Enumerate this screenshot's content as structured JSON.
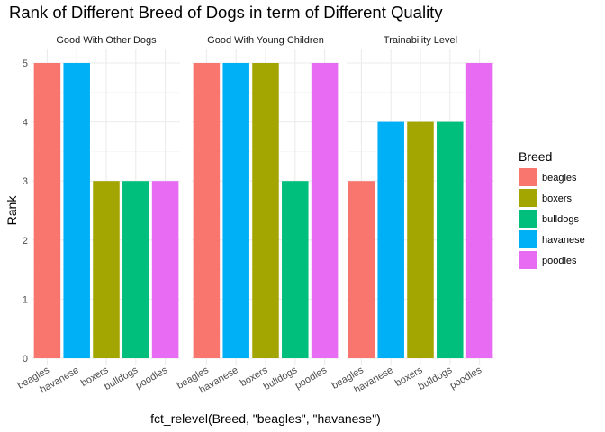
{
  "chart_data": {
    "type": "bar",
    "title": "Rank of Different Breed of Dogs in term of Different Quality",
    "xlabel": "fct_relevel(Breed, \"beagles\", \"havanese\")",
    "ylabel": "Rank",
    "ylim": [
      0,
      5
    ],
    "yticks": [
      "0",
      "1",
      "2",
      "3",
      "4",
      "5"
    ],
    "grid": true,
    "legend_position": "right",
    "categories": [
      "beagles",
      "havanese",
      "boxers",
      "bulldogs",
      "poodles"
    ],
    "facets": [
      {
        "name": "Good With Other Dogs",
        "values": [
          5,
          5,
          3,
          3,
          3
        ]
      },
      {
        "name": "Good With Young Children",
        "values": [
          5,
          5,
          5,
          3,
          5
        ]
      },
      {
        "name": "Trainability Level",
        "values": [
          3,
          4,
          4,
          4,
          5
        ]
      }
    ],
    "legend": {
      "title": "Breed",
      "entries": [
        {
          "label": "beagles",
          "color": "#F8766D"
        },
        {
          "label": "boxers",
          "color": "#A3A500"
        },
        {
          "label": "bulldogs",
          "color": "#00BF7D"
        },
        {
          "label": "havanese",
          "color": "#00B0F6"
        },
        {
          "label": "poodles",
          "color": "#E76BF3"
        }
      ]
    }
  }
}
